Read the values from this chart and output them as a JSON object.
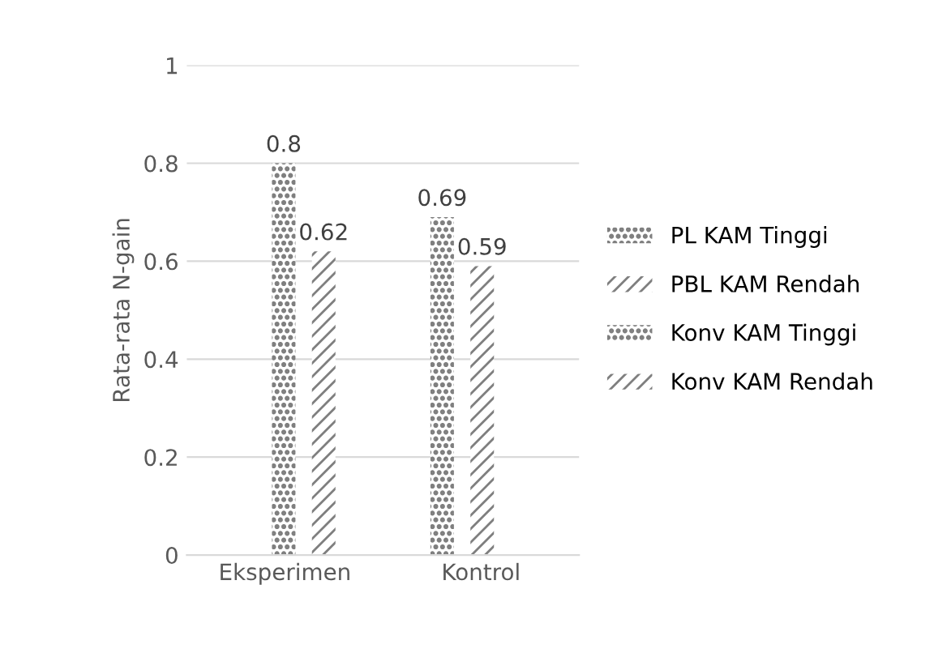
{
  "chart_data": {
    "type": "bar",
    "ylabel": "Rata-rata N-gain",
    "categories": [
      "Eksperimen",
      "Kontrol"
    ],
    "series": [
      {
        "name": "PL KAM Tinggi",
        "color": "#7f7f7f",
        "values": [
          0.8,
          null
        ]
      },
      {
        "name": "PBL KAM Rendah",
        "color": "#7f7f7f",
        "values": [
          0.62,
          null
        ]
      },
      {
        "name": "Konv KAM Tinggi",
        "color": "#7f7f7f",
        "values": [
          null,
          0.69
        ]
      },
      {
        "name": "Konv KAM Rendah",
        "color": "#7f7f7f",
        "values": [
          null,
          0.59
        ]
      }
    ],
    "ylim": [
      0,
      1
    ],
    "yticks": [
      0,
      0.2,
      0.4,
      0.6,
      0.8,
      1
    ],
    "grid": "y",
    "legend": "right",
    "data_labels": true
  }
}
